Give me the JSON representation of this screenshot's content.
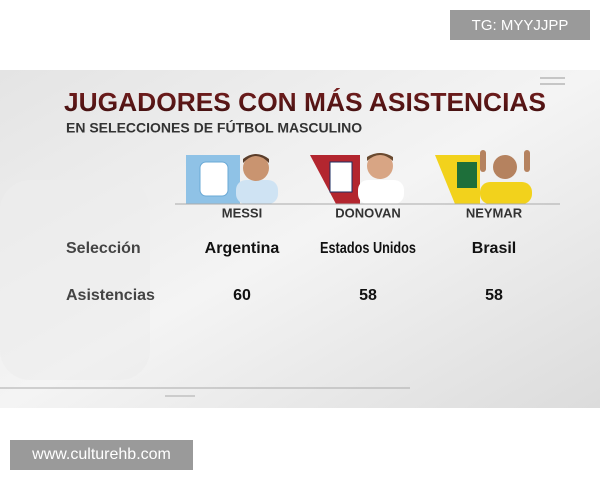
{
  "watermark_top": "TG: MYYJJPP",
  "header": {
    "title": "JUGADORES CON MÁS ASISTENCIAS",
    "subtitle": "EN SELECCIONES DE FÚTBOL MASCULINO"
  },
  "table": {
    "players": [
      "MESSI",
      "DONOVAN",
      "NEYMAR"
    ],
    "rows": [
      {
        "label": "Selección",
        "cells": [
          "Argentina",
          "Estados Unidos",
          "Brasil"
        ]
      },
      {
        "label": "Asistencias",
        "cells": [
          60,
          58,
          58
        ]
      }
    ]
  },
  "watermark_bottom": "www.culturehb.com"
}
